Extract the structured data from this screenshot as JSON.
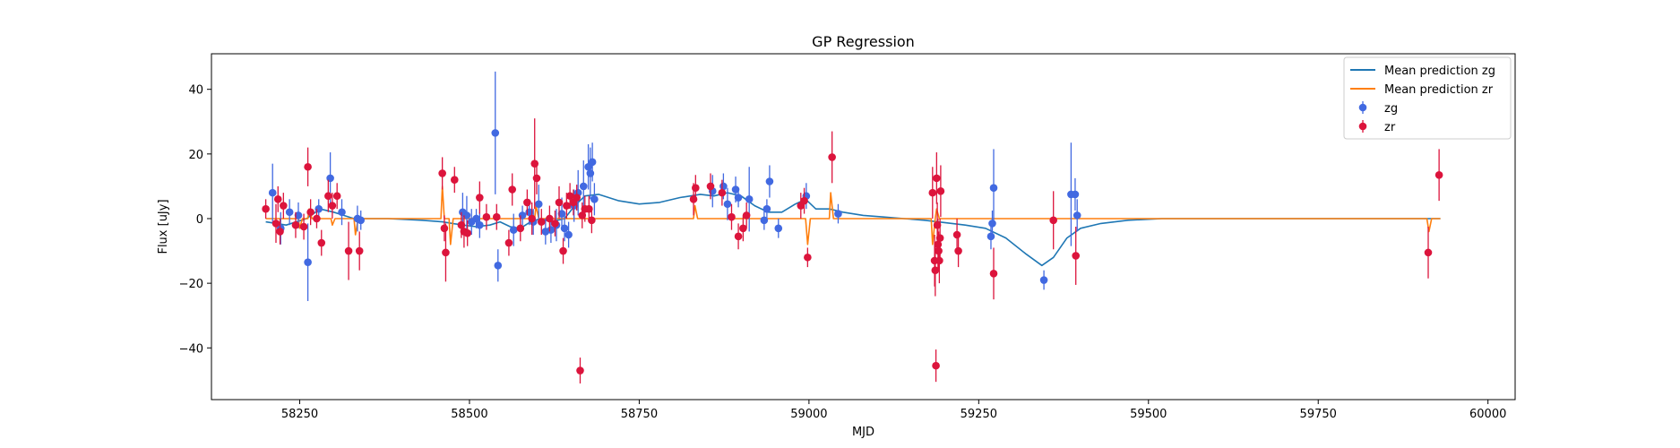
{
  "chart_data": {
    "type": "scatter",
    "title": "GP Regression",
    "xlabel": "MJD",
    "ylabel": "Flux [uJy]",
    "xlim": [
      58120,
      60040
    ],
    "ylim": [
      -56,
      51
    ],
    "xticks": [
      58250,
      58500,
      58750,
      59000,
      59250,
      59500,
      59750,
      60000
    ],
    "yticks": [
      -40,
      -20,
      0,
      20,
      40
    ],
    "grid": false,
    "legend_position": "top-right",
    "colors": {
      "zg_mean": "#1f77b4",
      "zr_mean": "#ff7f0e",
      "zg_points": "#4169e1",
      "zr_points": "#dc143c"
    },
    "legend": [
      {
        "label": "Mean prediction zg",
        "kind": "line",
        "color": "#1f77b4"
      },
      {
        "label": "Mean prediction zr",
        "kind": "line",
        "color": "#ff7f0e"
      },
      {
        "label": "zg",
        "kind": "point",
        "color": "#4169e1"
      },
      {
        "label": "zr",
        "kind": "point",
        "color": "#dc143c"
      }
    ],
    "mean_lines": [
      {
        "name": "Mean prediction zg",
        "color": "#1f77b4",
        "points": [
          [
            58200,
            -1
          ],
          [
            58230,
            -2
          ],
          [
            58260,
            0
          ],
          [
            58280,
            3
          ],
          [
            58300,
            2
          ],
          [
            58330,
            0
          ],
          [
            58380,
            0
          ],
          [
            58430,
            -0.5
          ],
          [
            58460,
            -1
          ],
          [
            58490,
            -2
          ],
          [
            58510,
            -2.5
          ],
          [
            58530,
            -2
          ],
          [
            58545,
            -1
          ],
          [
            58560,
            -2.5
          ],
          [
            58575,
            -3
          ],
          [
            58590,
            -1
          ],
          [
            58605,
            0
          ],
          [
            58620,
            -1
          ],
          [
            58640,
            0
          ],
          [
            58655,
            4
          ],
          [
            58670,
            7
          ],
          [
            58690,
            7.5
          ],
          [
            58720,
            5.5
          ],
          [
            58750,
            4.5
          ],
          [
            58780,
            5
          ],
          [
            58810,
            6.5
          ],
          [
            58840,
            7.5
          ],
          [
            58860,
            7
          ],
          [
            58880,
            8
          ],
          [
            58900,
            7
          ],
          [
            58920,
            4
          ],
          [
            58940,
            2
          ],
          [
            58960,
            2
          ],
          [
            58980,
            4.5
          ],
          [
            58995,
            6
          ],
          [
            59010,
            3
          ],
          [
            59030,
            3
          ],
          [
            59050,
            2
          ],
          [
            59080,
            1
          ],
          [
            59110,
            0.5
          ],
          [
            59140,
            0
          ],
          [
            59170,
            -0.5
          ],
          [
            59190,
            -1
          ],
          [
            59230,
            -2
          ],
          [
            59260,
            -3
          ],
          [
            59290,
            -6
          ],
          [
            59320,
            -11
          ],
          [
            59343,
            -14.5
          ],
          [
            59360,
            -12
          ],
          [
            59380,
            -6
          ],
          [
            59400,
            -3
          ],
          [
            59430,
            -1.5
          ],
          [
            59470,
            -0.5
          ],
          [
            59520,
            0
          ],
          [
            59930,
            0
          ]
        ]
      },
      {
        "name": "Mean prediction zr",
        "color": "#ff7f0e",
        "points": [
          [
            58200,
            0
          ],
          [
            58248,
            0
          ],
          [
            58250,
            -3
          ],
          [
            58254,
            0
          ],
          [
            58262,
            0
          ],
          [
            58264,
            3
          ],
          [
            58268,
            0
          ],
          [
            58296,
            0
          ],
          [
            58298,
            -2
          ],
          [
            58302,
            0
          ],
          [
            58330,
            0
          ],
          [
            58332,
            -5
          ],
          [
            58336,
            0
          ],
          [
            58458,
            0
          ],
          [
            58460,
            10
          ],
          [
            58463,
            0
          ],
          [
            58470,
            0
          ],
          [
            58472,
            -8
          ],
          [
            58476,
            0
          ],
          [
            58596,
            0
          ],
          [
            58598,
            4
          ],
          [
            58602,
            0
          ],
          [
            58830,
            0
          ],
          [
            58832,
            4
          ],
          [
            58836,
            0
          ],
          [
            58995,
            0
          ],
          [
            58998,
            -8
          ],
          [
            59002,
            0
          ],
          [
            59030,
            0
          ],
          [
            59032,
            8
          ],
          [
            59036,
            0
          ],
          [
            59180,
            0
          ],
          [
            59182,
            -8
          ],
          [
            59186,
            0
          ],
          [
            59188,
            3
          ],
          [
            59192,
            0
          ],
          [
            59910,
            0
          ],
          [
            59913,
            -4
          ],
          [
            59917,
            0
          ],
          [
            59930,
            0
          ]
        ]
      }
    ],
    "series": [
      {
        "name": "zg",
        "color": "#4169e1",
        "points": [
          {
            "x": 58210,
            "y": 8,
            "err": 9
          },
          {
            "x": 58222,
            "y": -3,
            "err": 5
          },
          {
            "x": 58235,
            "y": 2,
            "err": 4
          },
          {
            "x": 58248,
            "y": 1,
            "err": 4
          },
          {
            "x": 58262,
            "y": -13.5,
            "err": 12
          },
          {
            "x": 58278,
            "y": 3,
            "err": 3
          },
          {
            "x": 58295,
            "y": 12.5,
            "err": 8
          },
          {
            "x": 58312,
            "y": 2,
            "err": 4
          },
          {
            "x": 58335,
            "y": 0,
            "err": 4
          },
          {
            "x": 58340,
            "y": -0.5,
            "err": 3
          },
          {
            "x": 58490,
            "y": 2,
            "err": 6
          },
          {
            "x": 58496,
            "y": 1,
            "err": 6
          },
          {
            "x": 58503,
            "y": -1,
            "err": 4
          },
          {
            "x": 58510,
            "y": 0,
            "err": 3
          },
          {
            "x": 58515,
            "y": -2,
            "err": 4
          },
          {
            "x": 58538,
            "y": 26.5,
            "err": 19
          },
          {
            "x": 58542,
            "y": -14.5,
            "err": 5
          },
          {
            "x": 58565,
            "y": -3.5,
            "err": 5
          },
          {
            "x": 58578,
            "y": 1,
            "err": 3
          },
          {
            "x": 58588,
            "y": 2,
            "err": 4
          },
          {
            "x": 58594,
            "y": -1,
            "err": 4
          },
          {
            "x": 58602,
            "y": 4.5,
            "err": 6
          },
          {
            "x": 58612,
            "y": -4,
            "err": 4
          },
          {
            "x": 58620,
            "y": -3.5,
            "err": 4
          },
          {
            "x": 58628,
            "y": -2,
            "err": 5
          },
          {
            "x": 58636,
            "y": 1.5,
            "err": 5
          },
          {
            "x": 58640,
            "y": -3,
            "err": 4
          },
          {
            "x": 58646,
            "y": -5,
            "err": 4
          },
          {
            "x": 58654,
            "y": 4,
            "err": 5
          },
          {
            "x": 58660,
            "y": 8,
            "err": 7
          },
          {
            "x": 58668,
            "y": 10,
            "err": 8
          },
          {
            "x": 58675,
            "y": 16,
            "err": 7
          },
          {
            "x": 58678,
            "y": 14,
            "err": 8
          },
          {
            "x": 58681,
            "y": 17.5,
            "err": 6
          },
          {
            "x": 58684,
            "y": 6,
            "err": 5
          },
          {
            "x": 58858,
            "y": 8.5,
            "err": 5
          },
          {
            "x": 58874,
            "y": 10,
            "err": 4
          },
          {
            "x": 58880,
            "y": 4.5,
            "err": 5
          },
          {
            "x": 58892,
            "y": 9,
            "err": 4
          },
          {
            "x": 58896,
            "y": 6.5,
            "err": 3
          },
          {
            "x": 58912,
            "y": 6,
            "err": 10
          },
          {
            "x": 58934,
            "y": -0.5,
            "err": 3
          },
          {
            "x": 58938,
            "y": 3,
            "err": 3
          },
          {
            "x": 58942,
            "y": 11.5,
            "err": 5
          },
          {
            "x": 58955,
            "y": -3,
            "err": 3
          },
          {
            "x": 58996,
            "y": 7,
            "err": 4
          },
          {
            "x": 59043,
            "y": 1.5,
            "err": 3
          },
          {
            "x": 59268,
            "y": -5.5,
            "err": 4
          },
          {
            "x": 59270,
            "y": -1.5,
            "err": 4
          },
          {
            "x": 59272,
            "y": 9.5,
            "err": 12
          },
          {
            "x": 59346,
            "y": -19,
            "err": 3
          },
          {
            "x": 59386,
            "y": 7.5,
            "err": 16
          },
          {
            "x": 59392,
            "y": 7.5,
            "err": 5
          },
          {
            "x": 59395,
            "y": 1,
            "err": 5
          }
        ]
      },
      {
        "name": "zr",
        "color": "#dc143c",
        "points": [
          {
            "x": 58200,
            "y": 3,
            "err": 3
          },
          {
            "x": 58215,
            "y": -1.5,
            "err": 6
          },
          {
            "x": 58218,
            "y": 6,
            "err": 4
          },
          {
            "x": 58221,
            "y": -4,
            "err": 4
          },
          {
            "x": 58226,
            "y": 4,
            "err": 4
          },
          {
            "x": 58244,
            "y": -2,
            "err": 4
          },
          {
            "x": 58256,
            "y": -2.5,
            "err": 4
          },
          {
            "x": 58262,
            "y": 16,
            "err": 6
          },
          {
            "x": 58266,
            "y": 2,
            "err": 4
          },
          {
            "x": 58275,
            "y": 0,
            "err": 3
          },
          {
            "x": 58282,
            "y": -7.5,
            "err": 4
          },
          {
            "x": 58292,
            "y": 7,
            "err": 5
          },
          {
            "x": 58298,
            "y": 4,
            "err": 4
          },
          {
            "x": 58305,
            "y": 7,
            "err": 4
          },
          {
            "x": 58322,
            "y": -10,
            "err": 9
          },
          {
            "x": 58338,
            "y": -10,
            "err": 6
          },
          {
            "x": 58460,
            "y": 14,
            "err": 5
          },
          {
            "x": 58463,
            "y": -3,
            "err": 4
          },
          {
            "x": 58465,
            "y": -10.5,
            "err": 9
          },
          {
            "x": 58478,
            "y": 12,
            "err": 4
          },
          {
            "x": 58488,
            "y": -2,
            "err": 4
          },
          {
            "x": 58492,
            "y": -4,
            "err": 5
          },
          {
            "x": 58497,
            "y": -4.5,
            "err": 4
          },
          {
            "x": 58515,
            "y": 6.5,
            "err": 5
          },
          {
            "x": 58525,
            "y": 0.5,
            "err": 4
          },
          {
            "x": 58540,
            "y": 0.5,
            "err": 4
          },
          {
            "x": 58558,
            "y": -7.5,
            "err": 4
          },
          {
            "x": 58563,
            "y": 9,
            "err": 5
          },
          {
            "x": 58575,
            "y": -3,
            "err": 4
          },
          {
            "x": 58585,
            "y": 5,
            "err": 4
          },
          {
            "x": 58592,
            "y": 0,
            "err": 5
          },
          {
            "x": 58596,
            "y": 17,
            "err": 14
          },
          {
            "x": 58599,
            "y": 12.5,
            "err": 5
          },
          {
            "x": 58606,
            "y": -1,
            "err": 4
          },
          {
            "x": 58618,
            "y": 0,
            "err": 4
          },
          {
            "x": 58626,
            "y": -1.5,
            "err": 4
          },
          {
            "x": 58632,
            "y": 5,
            "err": 5
          },
          {
            "x": 58638,
            "y": -10,
            "err": 4
          },
          {
            "x": 58643,
            "y": 4,
            "err": 4
          },
          {
            "x": 58648,
            "y": 7,
            "err": 4
          },
          {
            "x": 58653,
            "y": 5,
            "err": 4
          },
          {
            "x": 58658,
            "y": 6.5,
            "err": 4
          },
          {
            "x": 58663,
            "y": -47,
            "err": 4
          },
          {
            "x": 58666,
            "y": 1,
            "err": 4
          },
          {
            "x": 58670,
            "y": 3,
            "err": 4
          },
          {
            "x": 58676,
            "y": 3,
            "err": 4
          },
          {
            "x": 58680,
            "y": -0.5,
            "err": 4
          },
          {
            "x": 58830,
            "y": 6,
            "err": 5
          },
          {
            "x": 58833,
            "y": 9.5,
            "err": 4
          },
          {
            "x": 58855,
            "y": 10,
            "err": 4
          },
          {
            "x": 58872,
            "y": 8,
            "err": 4
          },
          {
            "x": 58886,
            "y": 0.5,
            "err": 4
          },
          {
            "x": 58896,
            "y": -5.5,
            "err": 4
          },
          {
            "x": 58903,
            "y": -3,
            "err": 4
          },
          {
            "x": 58908,
            "y": 1,
            "err": 4
          },
          {
            "x": 58988,
            "y": 4,
            "err": 4
          },
          {
            "x": 58993,
            "y": 5.5,
            "err": 4
          },
          {
            "x": 58998,
            "y": -12,
            "err": 3
          },
          {
            "x": 59034,
            "y": 19,
            "err": 8
          },
          {
            "x": 59182,
            "y": 8,
            "err": 8
          },
          {
            "x": 59185,
            "y": -13,
            "err": 8
          },
          {
            "x": 59186,
            "y": -16,
            "err": 8
          },
          {
            "x": 59187,
            "y": -45.5,
            "err": 5
          },
          {
            "x": 59188,
            "y": 12.5,
            "err": 8
          },
          {
            "x": 59189,
            "y": -2,
            "err": 7
          },
          {
            "x": 59190,
            "y": -8,
            "err": 8
          },
          {
            "x": 59191,
            "y": -10,
            "err": 6
          },
          {
            "x": 59192,
            "y": -13,
            "err": 7
          },
          {
            "x": 59193,
            "y": -6,
            "err": 6
          },
          {
            "x": 59194,
            "y": 8.5,
            "err": 8
          },
          {
            "x": 59218,
            "y": -5,
            "err": 5
          },
          {
            "x": 59220,
            "y": -10,
            "err": 5
          },
          {
            "x": 59272,
            "y": -17,
            "err": 8
          },
          {
            "x": 59360,
            "y": -0.5,
            "err": 9
          },
          {
            "x": 59393,
            "y": -11.5,
            "err": 9
          },
          {
            "x": 59912,
            "y": -10.5,
            "err": 8
          },
          {
            "x": 59928,
            "y": 13.5,
            "err": 8
          }
        ]
      }
    ]
  }
}
